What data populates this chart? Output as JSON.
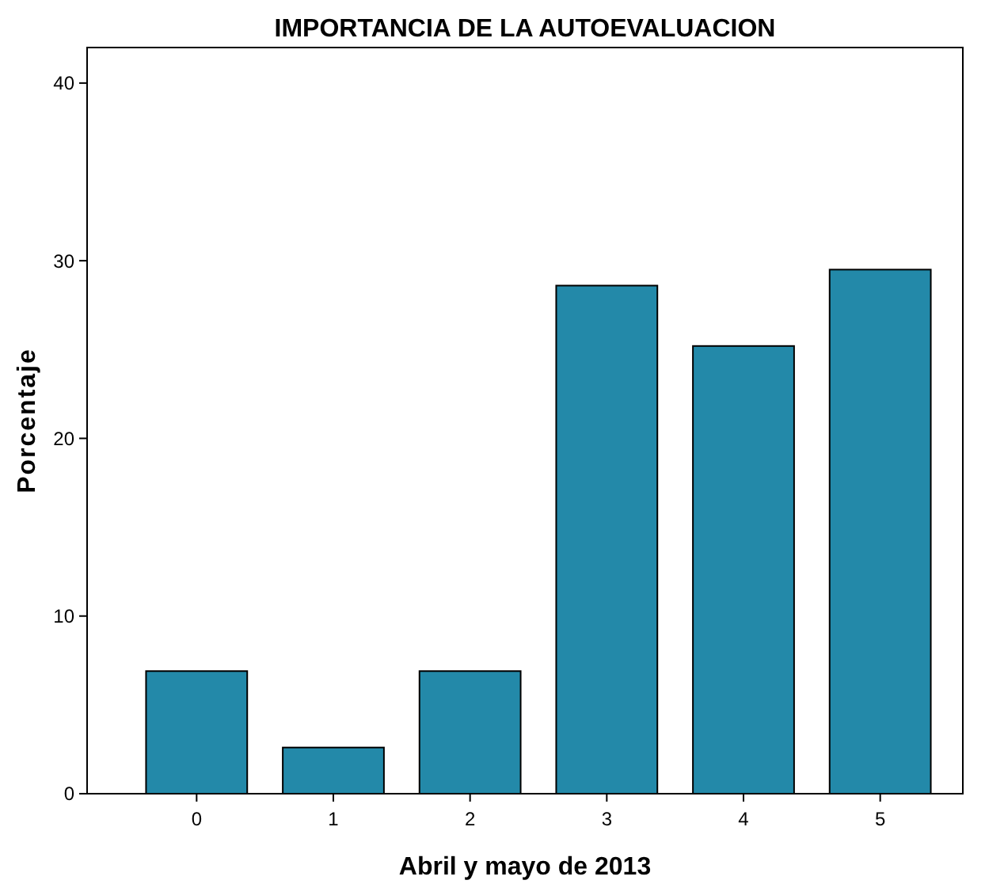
{
  "chart_data": {
    "type": "bar",
    "title": "IMPORTANCIA DE LA AUTOEVALUACION",
    "xlabel": "Abril y mayo de 2013",
    "ylabel": "Porcentaje",
    "categories": [
      "0",
      "1",
      "2",
      "3",
      "4",
      "5"
    ],
    "values": [
      6.9,
      2.6,
      6.9,
      28.6,
      25.2,
      29.5
    ],
    "color": "#2389a9",
    "ylim": [
      0,
      42
    ],
    "yticks": [
      0,
      10,
      20,
      30,
      40
    ],
    "grid": false
  }
}
